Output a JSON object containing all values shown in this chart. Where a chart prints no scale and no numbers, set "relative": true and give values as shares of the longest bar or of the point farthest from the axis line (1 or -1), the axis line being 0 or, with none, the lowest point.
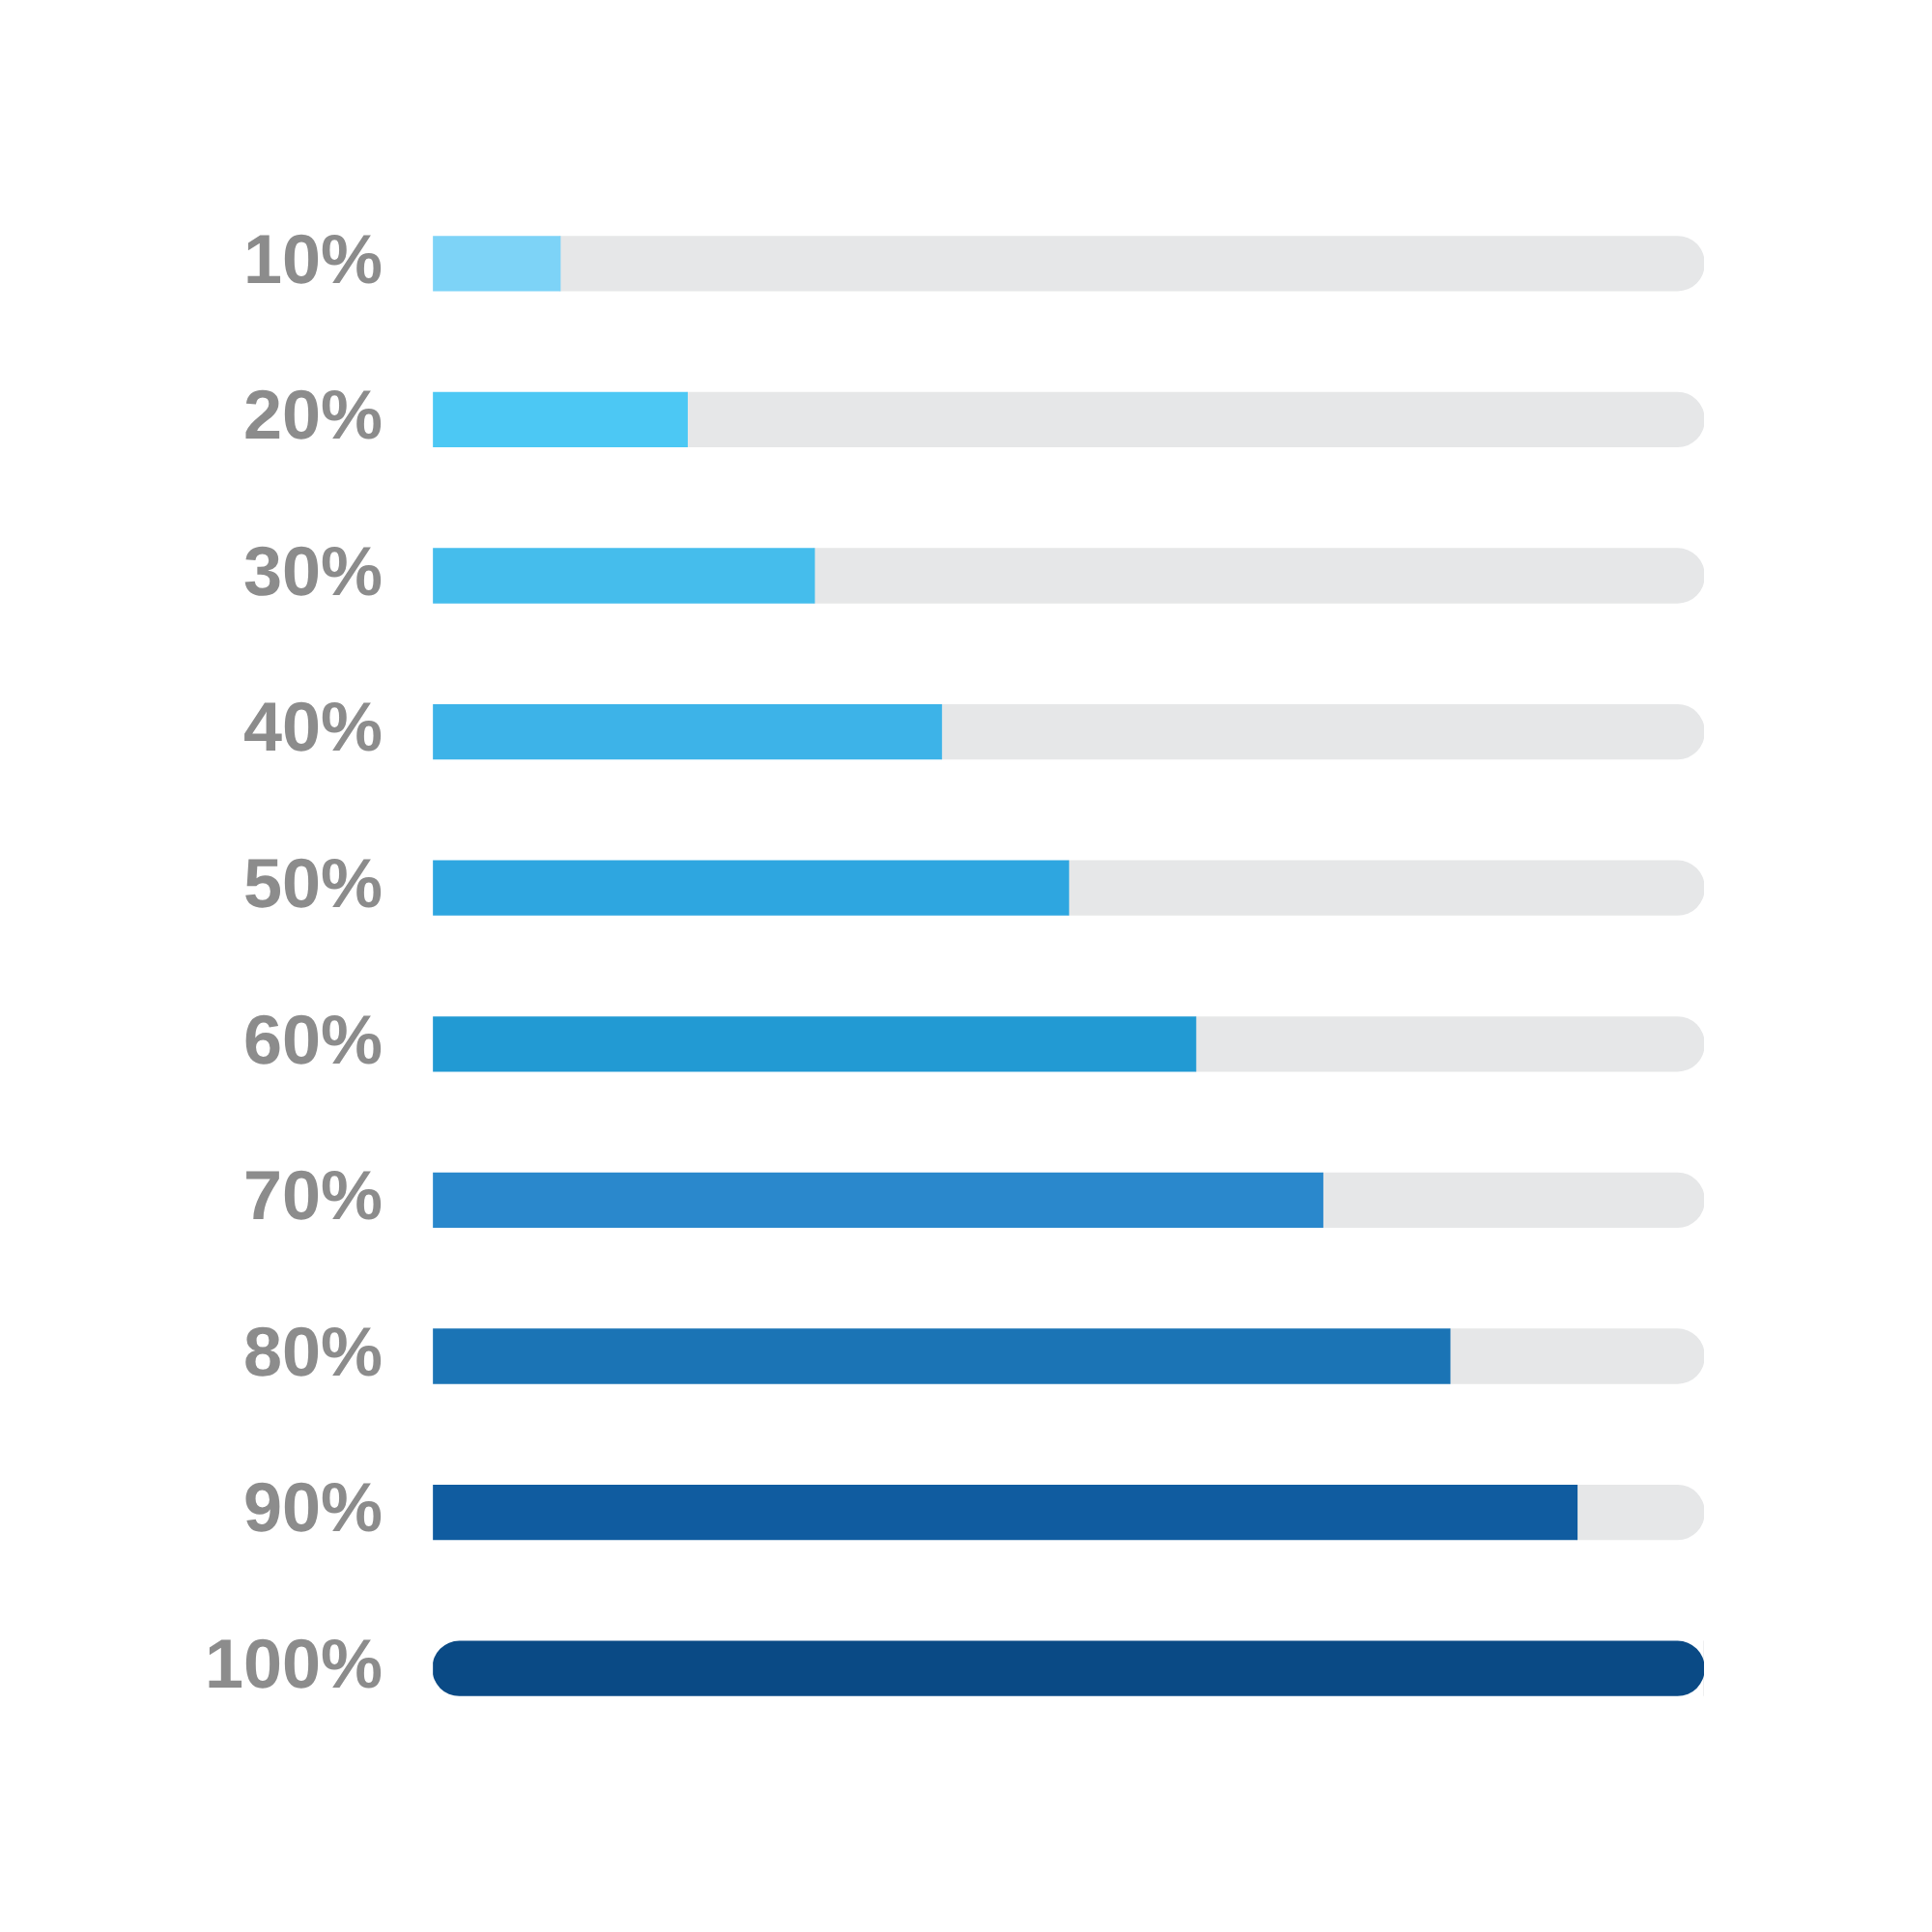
{
  "chart_data": {
    "type": "bar",
    "orientation": "horizontal",
    "stacked": true,
    "relative": true,
    "categories": [
      "10%",
      "20%",
      "30%",
      "40%",
      "50%",
      "60%",
      "70%",
      "80%",
      "90%",
      "100%"
    ],
    "series": [
      {
        "colors": [
          "#7dd3f7",
          "#4cc8f4",
          "#45bdec",
          "#3db3e8",
          "#2ea6e0",
          "#229ad3",
          "#2a88cc",
          "#1b74b5",
          "#105ca0",
          "#0a4a85"
        ],
        "values": [
          0.1,
          0.2,
          0.3,
          0.4,
          0.5,
          0.6,
          0.7,
          0.8,
          0.9,
          1.0
        ]
      },
      {
        "color": "#e6e7e8",
        "values": [
          0.9,
          0.8,
          0.7,
          0.6,
          0.5,
          0.4,
          0.3,
          0.2,
          0.1,
          0
        ]
      }
    ]
  }
}
